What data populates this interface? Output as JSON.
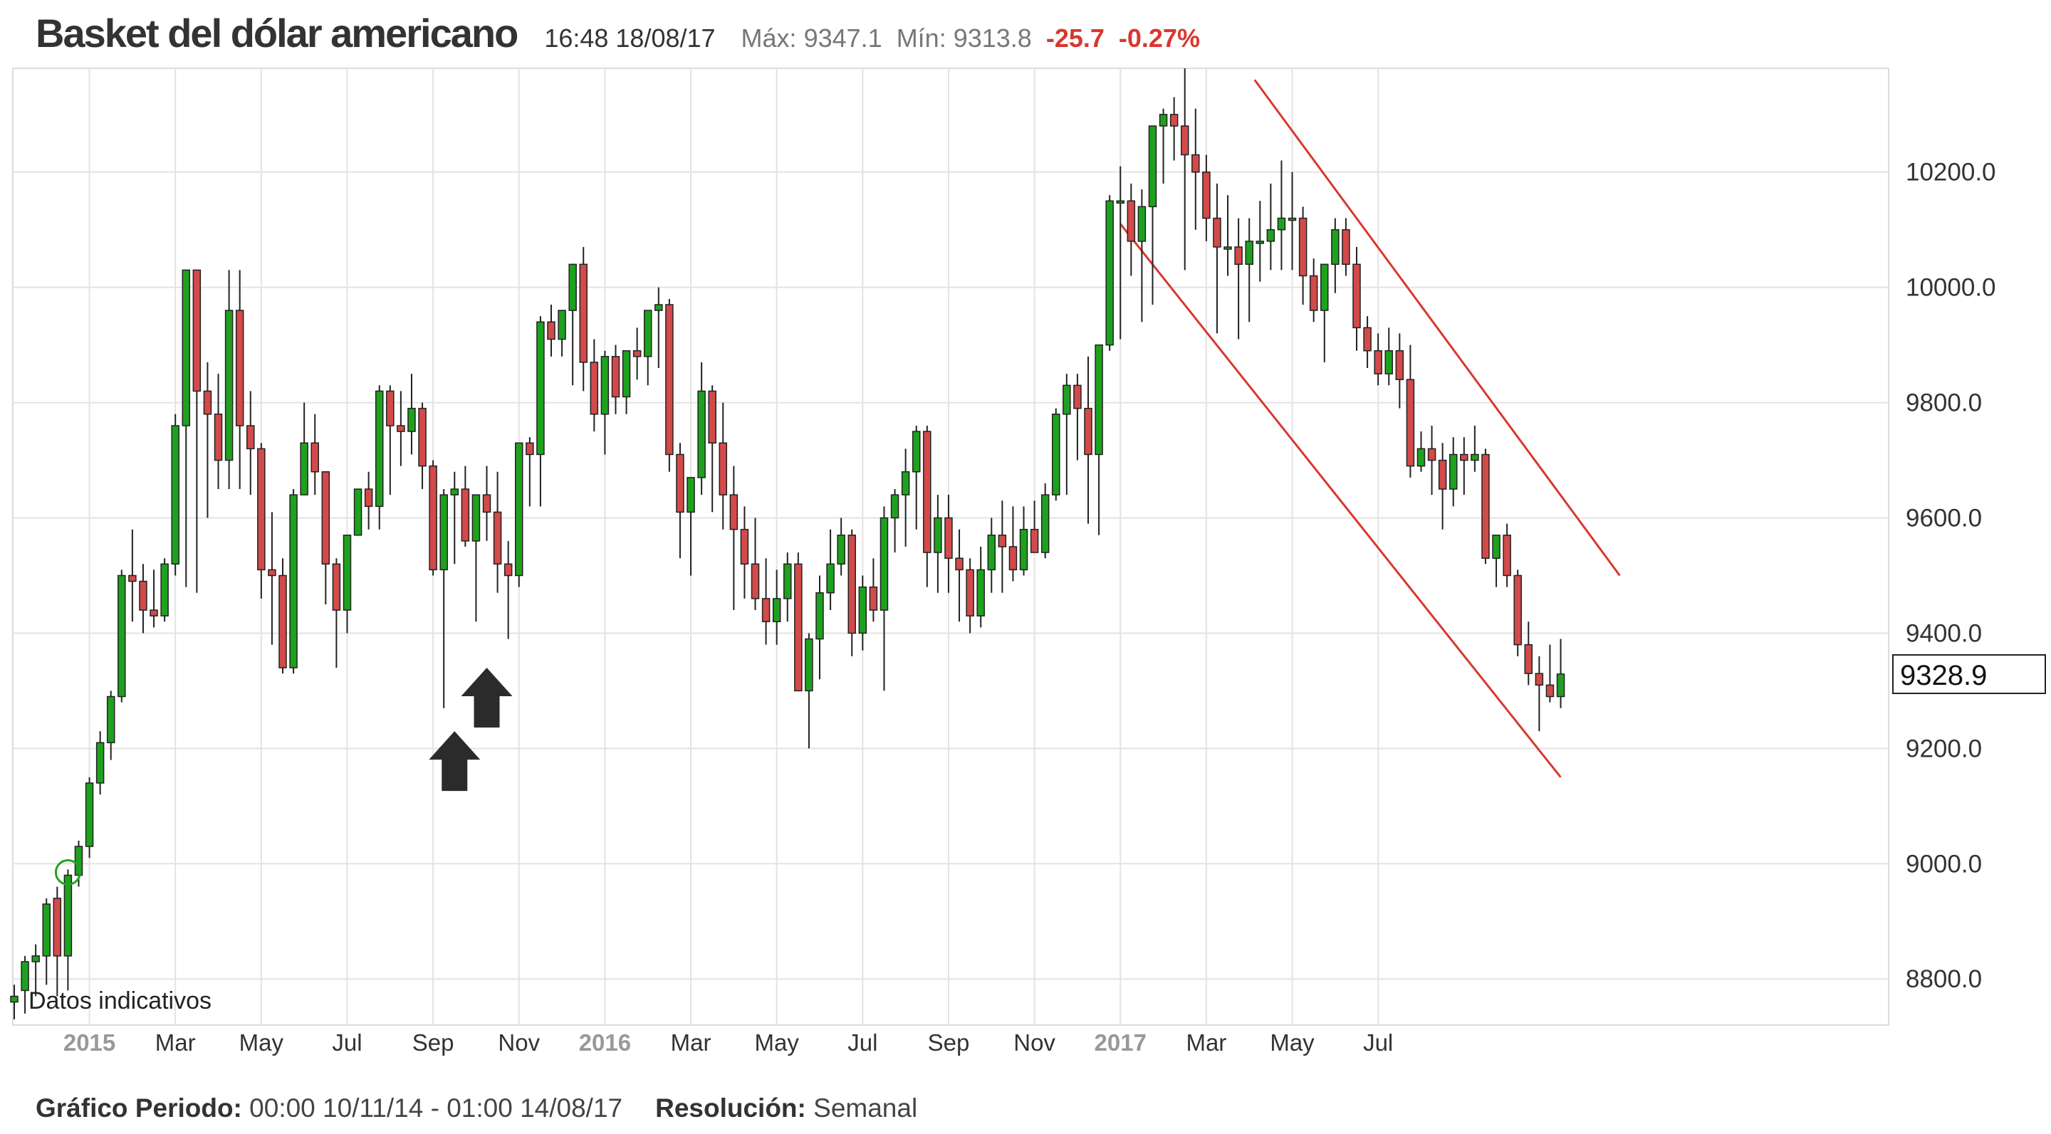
{
  "header": {
    "title": "Basket del dólar americano",
    "time": "16:48 18/08/17",
    "max_label": "Máx:",
    "max_value": "9347.1",
    "min_label": "Mín:",
    "min_value": "9313.8",
    "change": "-25.7",
    "change_pct": "-0.27%"
  },
  "footer": {
    "period_label": "Gráfico Periodo:",
    "period_value": "00:00 10/11/14 - 01:00 14/08/17",
    "resolution_label": "Resolución:",
    "resolution_value": "Semanal"
  },
  "chart_data": {
    "type": "candlestick",
    "title": "Basket del dólar americano",
    "ylim": [
      8720,
      10380
    ],
    "y_ticks": [
      "8800.0",
      "9000.0",
      "9200.0",
      "9400.0",
      "9600.0",
      "9800.0",
      "10000.0",
      "10200.0"
    ],
    "x_ticks": [
      {
        "label": "2015",
        "bold": true,
        "week": 7
      },
      {
        "label": "Mar",
        "week": 15
      },
      {
        "label": "May",
        "week": 23
      },
      {
        "label": "Jul",
        "week": 31
      },
      {
        "label": "Sep",
        "week": 39
      },
      {
        "label": "Nov",
        "week": 47
      },
      {
        "label": "2016",
        "bold": true,
        "week": 55
      },
      {
        "label": "Mar",
        "week": 63
      },
      {
        "label": "May",
        "week": 71
      },
      {
        "label": "Jul",
        "week": 79
      },
      {
        "label": "Sep",
        "week": 87
      },
      {
        "label": "Nov",
        "week": 95
      },
      {
        "label": "2017",
        "bold": true,
        "week": 103
      },
      {
        "label": "Mar",
        "week": 111
      },
      {
        "label": "May",
        "week": 119
      },
      {
        "label": "Jul",
        "week": 127
      }
    ],
    "last_price": "9328.9",
    "watermark": "Datos indicativos",
    "grid": true,
    "up_color": "#1ea11e",
    "down_color": "#d24a4a",
    "candles": [
      [
        8760,
        8790,
        8730,
        8770
      ],
      [
        8780,
        8840,
        8740,
        8830
      ],
      [
        8830,
        8860,
        8770,
        8840
      ],
      [
        8840,
        8940,
        8790,
        8930
      ],
      [
        8940,
        8960,
        8770,
        8840
      ],
      [
        8840,
        8990,
        8780,
        8980
      ],
      [
        8980,
        9040,
        8960,
        9030
      ],
      [
        9030,
        9150,
        9010,
        9140
      ],
      [
        9140,
        9230,
        9120,
        9210
      ],
      [
        9210,
        9300,
        9180,
        9290
      ],
      [
        9290,
        9510,
        9280,
        9500
      ],
      [
        9500,
        9580,
        9420,
        9490
      ],
      [
        9490,
        9520,
        9400,
        9440
      ],
      [
        9440,
        9510,
        9410,
        9430
      ],
      [
        9430,
        9530,
        9420,
        9520
      ],
      [
        9520,
        9780,
        9500,
        9760
      ],
      [
        9760,
        10030,
        9480,
        10030
      ],
      [
        10030,
        10030,
        9470,
        9820
      ],
      [
        9820,
        9870,
        9600,
        9780
      ],
      [
        9780,
        9850,
        9650,
        9700
      ],
      [
        9700,
        10030,
        9650,
        9960
      ],
      [
        9960,
        10030,
        9650,
        9760
      ],
      [
        9760,
        9820,
        9640,
        9720
      ],
      [
        9720,
        9730,
        9460,
        9510
      ],
      [
        9510,
        9610,
        9380,
        9500
      ],
      [
        9500,
        9530,
        9330,
        9340
      ],
      [
        9340,
        9650,
        9330,
        9640
      ],
      [
        9640,
        9800,
        9640,
        9730
      ],
      [
        9730,
        9780,
        9640,
        9680
      ],
      [
        9680,
        9680,
        9450,
        9520
      ],
      [
        9520,
        9530,
        9340,
        9440
      ],
      [
        9440,
        9560,
        9400,
        9570
      ],
      [
        9570,
        9650,
        9570,
        9650
      ],
      [
        9650,
        9680,
        9580,
        9620
      ],
      [
        9620,
        9830,
        9580,
        9820
      ],
      [
        9820,
        9830,
        9640,
        9760
      ],
      [
        9760,
        9820,
        9690,
        9750
      ],
      [
        9750,
        9850,
        9710,
        9790
      ],
      [
        9790,
        9800,
        9650,
        9690
      ],
      [
        9690,
        9700,
        9500,
        9510
      ],
      [
        9510,
        9650,
        9270,
        9640
      ],
      [
        9640,
        9680,
        9520,
        9650
      ],
      [
        9650,
        9690,
        9550,
        9560
      ],
      [
        9560,
        9640,
        9420,
        9640
      ],
      [
        9640,
        9690,
        9560,
        9610
      ],
      [
        9610,
        9680,
        9470,
        9520
      ],
      [
        9520,
        9560,
        9390,
        9500
      ],
      [
        9500,
        9730,
        9480,
        9730
      ],
      [
        9730,
        9740,
        9620,
        9710
      ],
      [
        9710,
        9950,
        9620,
        9940
      ],
      [
        9940,
        9970,
        9880,
        9910
      ],
      [
        9910,
        9950,
        9880,
        9960
      ],
      [
        9960,
        10040,
        9830,
        10040
      ],
      [
        10040,
        10070,
        9820,
        9870
      ],
      [
        9870,
        9910,
        9750,
        9780
      ],
      [
        9780,
        9890,
        9710,
        9880
      ],
      [
        9880,
        9900,
        9780,
        9810
      ],
      [
        9810,
        9890,
        9780,
        9890
      ],
      [
        9890,
        9930,
        9840,
        9880
      ],
      [
        9880,
        9950,
        9830,
        9960
      ],
      [
        9960,
        10000,
        9860,
        9970
      ],
      [
        9970,
        9980,
        9680,
        9710
      ],
      [
        9710,
        9730,
        9530,
        9610
      ],
      [
        9610,
        9660,
        9500,
        9670
      ],
      [
        9670,
        9870,
        9640,
        9820
      ],
      [
        9820,
        9830,
        9610,
        9730
      ],
      [
        9730,
        9800,
        9580,
        9640
      ],
      [
        9640,
        9690,
        9440,
        9580
      ],
      [
        9580,
        9620,
        9460,
        9520
      ],
      [
        9520,
        9600,
        9440,
        9460
      ],
      [
        9460,
        9530,
        9380,
        9420
      ],
      [
        9420,
        9510,
        9380,
        9460
      ],
      [
        9460,
        9540,
        9420,
        9520
      ],
      [
        9520,
        9540,
        9310,
        9300
      ],
      [
        9300,
        9400,
        9200,
        9390
      ],
      [
        9390,
        9500,
        9320,
        9470
      ],
      [
        9470,
        9580,
        9440,
        9520
      ],
      [
        9520,
        9600,
        9500,
        9570
      ],
      [
        9570,
        9580,
        9360,
        9400
      ],
      [
        9400,
        9500,
        9370,
        9480
      ],
      [
        9480,
        9530,
        9420,
        9440
      ],
      [
        9440,
        9620,
        9300,
        9600
      ],
      [
        9600,
        9650,
        9540,
        9640
      ],
      [
        9640,
        9720,
        9550,
        9680
      ],
      [
        9680,
        9760,
        9580,
        9750
      ],
      [
        9750,
        9760,
        9480,
        9540
      ],
      [
        9540,
        9640,
        9470,
        9600
      ],
      [
        9600,
        9640,
        9470,
        9530
      ],
      [
        9530,
        9580,
        9420,
        9510
      ],
      [
        9510,
        9530,
        9400,
        9430
      ],
      [
        9430,
        9550,
        9410,
        9510
      ],
      [
        9510,
        9600,
        9470,
        9570
      ],
      [
        9570,
        9630,
        9470,
        9550
      ],
      [
        9550,
        9620,
        9490,
        9510
      ],
      [
        9510,
        9620,
        9500,
        9580
      ],
      [
        9580,
        9630,
        9540,
        9540
      ],
      [
        9540,
        9660,
        9530,
        9640
      ],
      [
        9640,
        9790,
        9630,
        9780
      ],
      [
        9780,
        9850,
        9640,
        9830
      ],
      [
        9830,
        9850,
        9700,
        9790
      ],
      [
        9790,
        9880,
        9590,
        9710
      ],
      [
        9710,
        9900,
        9570,
        9900
      ],
      [
        9900,
        10160,
        9890,
        10150
      ],
      [
        10150,
        10210,
        9910,
        10150
      ],
      [
        10150,
        10180,
        10020,
        10080
      ],
      [
        10080,
        10170,
        9940,
        10140
      ],
      [
        10140,
        10280,
        9970,
        10280
      ],
      [
        10280,
        10310,
        10180,
        10300
      ],
      [
        10300,
        10330,
        10220,
        10280
      ],
      [
        10280,
        10380,
        10030,
        10230
      ],
      [
        10230,
        10310,
        10100,
        10200
      ],
      [
        10200,
        10230,
        10080,
        10120
      ],
      [
        10120,
        10180,
        9920,
        10070
      ],
      [
        10070,
        10160,
        10020,
        10070
      ],
      [
        10070,
        10120,
        9910,
        10040
      ],
      [
        10040,
        10120,
        9940,
        10080
      ],
      [
        10080,
        10150,
        10010,
        10080
      ],
      [
        10080,
        10180,
        10030,
        10100
      ],
      [
        10100,
        10220,
        10030,
        10120
      ],
      [
        10120,
        10200,
        10030,
        10120
      ],
      [
        10120,
        10140,
        9970,
        10020
      ],
      [
        10020,
        10050,
        9940,
        9960
      ],
      [
        9960,
        10040,
        9870,
        10040
      ],
      [
        10040,
        10120,
        9990,
        10100
      ],
      [
        10100,
        10120,
        10020,
        10040
      ],
      [
        10040,
        10070,
        9890,
        9930
      ],
      [
        9930,
        9950,
        9860,
        9890
      ],
      [
        9890,
        9920,
        9830,
        9850
      ],
      [
        9850,
        9930,
        9830,
        9890
      ],
      [
        9890,
        9920,
        9790,
        9840
      ],
      [
        9840,
        9900,
        9670,
        9690
      ],
      [
        9690,
        9750,
        9680,
        9720
      ],
      [
        9720,
        9760,
        9640,
        9700
      ],
      [
        9700,
        9730,
        9580,
        9650
      ],
      [
        9650,
        9740,
        9620,
        9710
      ],
      [
        9710,
        9740,
        9640,
        9700
      ],
      [
        9700,
        9760,
        9680,
        9710
      ],
      [
        9710,
        9720,
        9520,
        9530
      ],
      [
        9530,
        9560,
        9480,
        9570
      ],
      [
        9570,
        9590,
        9480,
        9500
      ],
      [
        9500,
        9510,
        9360,
        9380
      ],
      [
        9380,
        9420,
        9310,
        9330
      ],
      [
        9330,
        9360,
        9230,
        9310
      ],
      [
        9310,
        9380,
        9280,
        9290
      ],
      [
        9290,
        9390,
        9270,
        9329
      ]
    ],
    "trend_lines": [
      {
        "color": "#d8382f",
        "from": {
          "week": 115.5,
          "value": 10360
        },
        "to": {
          "week": 149.5,
          "value": 9500
        }
      },
      {
        "color": "#d8382f",
        "from": {
          "week": 103,
          "value": 10110
        },
        "to": {
          "week": 144,
          "value": 9150
        }
      }
    ],
    "annotations": {
      "arrows": [
        {
          "week": 41,
          "value": 9230
        },
        {
          "week": 44,
          "value": 9340
        }
      ],
      "circle": {
        "week": 5,
        "value": 8985
      }
    }
  }
}
